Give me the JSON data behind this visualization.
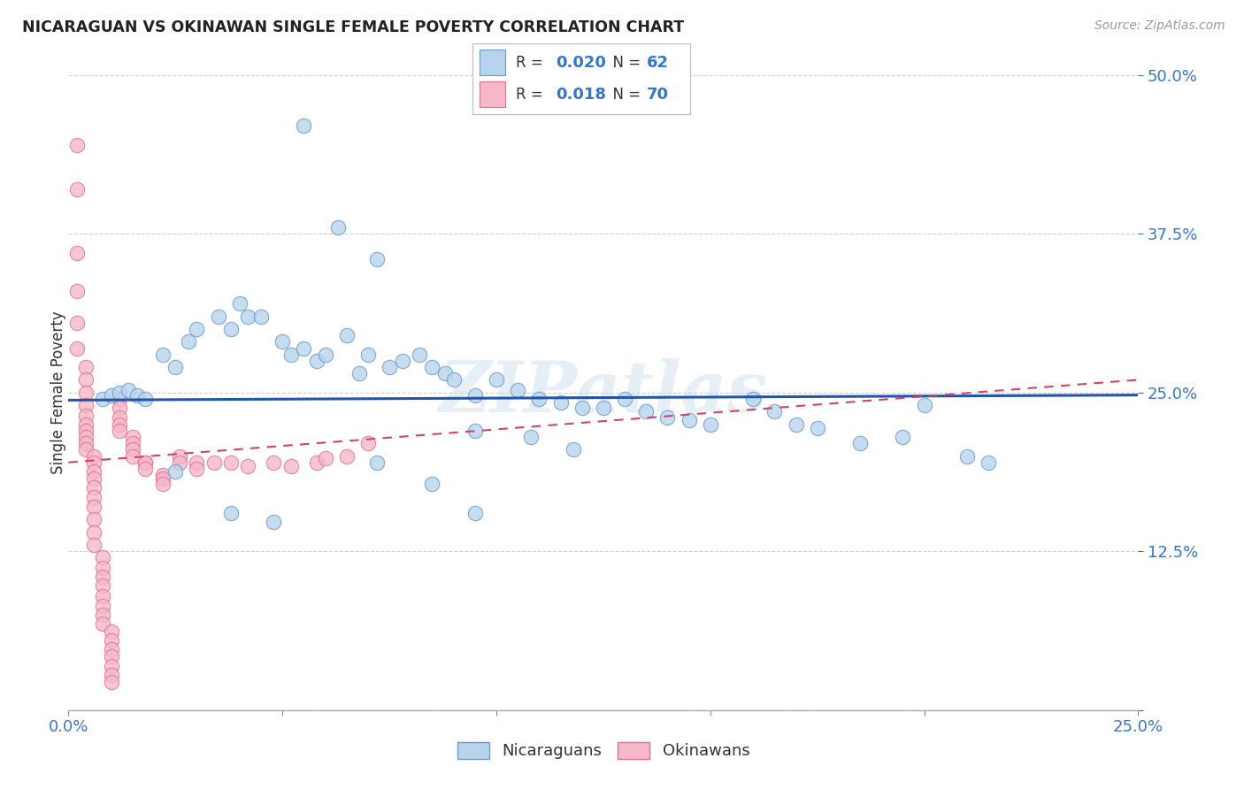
{
  "title": "NICARAGUAN VS OKINAWAN SINGLE FEMALE POVERTY CORRELATION CHART",
  "source": "Source: ZipAtlas.com",
  "ylabel": "Single Female Poverty",
  "xlim": [
    0.0,
    0.25
  ],
  "ylim": [
    0.0,
    0.5
  ],
  "yticks": [
    0.0,
    0.125,
    0.25,
    0.375,
    0.5
  ],
  "ytick_labels": [
    "",
    "12.5%",
    "25.0%",
    "37.5%",
    "50.0%"
  ],
  "xticks": [
    0.0,
    0.05,
    0.1,
    0.15,
    0.2,
    0.25
  ],
  "xtick_labels": [
    "0.0%",
    "",
    "",
    "",
    "",
    "25.0%"
  ],
  "watermark": "ZIPatlas",
  "color_nicaraguan_fill": "#b8d4ec",
  "color_nicaraguan_edge": "#6699cc",
  "color_okinawan_fill": "#f5b8c8",
  "color_okinawan_edge": "#e07090",
  "color_line_nicaraguan": "#2255aa",
  "color_line_okinawan": "#cc4466",
  "background_color": "#ffffff",
  "grid_color": "#cccccc",
  "title_color": "#222222",
  "axis_tick_color": "#3377cc",
  "legend_box_color": "#dddddd",
  "nicaraguan_x": [
    0.008,
    0.01,
    0.012,
    0.014,
    0.016,
    0.018,
    0.022,
    0.025,
    0.028,
    0.03,
    0.035,
    0.038,
    0.04,
    0.042,
    0.045,
    0.05,
    0.052,
    0.055,
    0.058,
    0.06,
    0.065,
    0.068,
    0.07,
    0.075,
    0.078,
    0.082,
    0.085,
    0.088,
    0.09,
    0.095,
    0.1,
    0.105,
    0.11,
    0.115,
    0.12,
    0.125,
    0.13,
    0.135,
    0.14,
    0.145,
    0.15,
    0.16,
    0.165,
    0.17,
    0.175,
    0.185,
    0.195,
    0.2,
    0.21,
    0.215,
    0.055,
    0.063,
    0.072,
    0.095,
    0.108,
    0.118,
    0.038,
    0.048,
    0.025,
    0.072,
    0.085,
    0.095
  ],
  "nicaraguan_y": [
    0.245,
    0.248,
    0.25,
    0.252,
    0.248,
    0.245,
    0.28,
    0.27,
    0.29,
    0.3,
    0.31,
    0.3,
    0.32,
    0.31,
    0.31,
    0.29,
    0.28,
    0.285,
    0.275,
    0.28,
    0.295,
    0.265,
    0.28,
    0.27,
    0.275,
    0.28,
    0.27,
    0.265,
    0.26,
    0.248,
    0.26,
    0.252,
    0.245,
    0.242,
    0.238,
    0.238,
    0.245,
    0.235,
    0.23,
    0.228,
    0.225,
    0.245,
    0.235,
    0.225,
    0.222,
    0.21,
    0.215,
    0.24,
    0.2,
    0.195,
    0.46,
    0.38,
    0.355,
    0.22,
    0.215,
    0.205,
    0.155,
    0.148,
    0.188,
    0.195,
    0.178,
    0.155
  ],
  "okinawan_x": [
    0.002,
    0.002,
    0.002,
    0.002,
    0.002,
    0.002,
    0.004,
    0.004,
    0.004,
    0.004,
    0.004,
    0.004,
    0.004,
    0.004,
    0.004,
    0.004,
    0.006,
    0.006,
    0.006,
    0.006,
    0.006,
    0.006,
    0.006,
    0.006,
    0.006,
    0.006,
    0.008,
    0.008,
    0.008,
    0.008,
    0.008,
    0.008,
    0.008,
    0.008,
    0.01,
    0.01,
    0.01,
    0.01,
    0.01,
    0.01,
    0.01,
    0.012,
    0.012,
    0.012,
    0.012,
    0.012,
    0.015,
    0.015,
    0.015,
    0.015,
    0.018,
    0.018,
    0.018,
    0.022,
    0.022,
    0.022,
    0.026,
    0.026,
    0.03,
    0.03,
    0.034,
    0.038,
    0.042,
    0.048,
    0.052,
    0.058,
    0.06,
    0.065,
    0.07
  ],
  "okinawan_y": [
    0.445,
    0.41,
    0.36,
    0.33,
    0.305,
    0.285,
    0.27,
    0.26,
    0.25,
    0.24,
    0.232,
    0.225,
    0.22,
    0.215,
    0.21,
    0.205,
    0.2,
    0.195,
    0.188,
    0.182,
    0.175,
    0.168,
    0.16,
    0.15,
    0.14,
    0.13,
    0.12,
    0.112,
    0.105,
    0.098,
    0.09,
    0.082,
    0.075,
    0.068,
    0.062,
    0.055,
    0.048,
    0.042,
    0.035,
    0.028,
    0.022,
    0.245,
    0.238,
    0.23,
    0.225,
    0.22,
    0.215,
    0.21,
    0.205,
    0.2,
    0.195,
    0.195,
    0.19,
    0.185,
    0.182,
    0.178,
    0.2,
    0.195,
    0.195,
    0.19,
    0.195,
    0.195,
    0.192,
    0.195,
    0.192,
    0.195,
    0.198,
    0.2,
    0.21
  ],
  "nic_line_x": [
    0.0,
    0.25
  ],
  "nic_line_y": [
    0.244,
    0.248
  ],
  "oki_line_x": [
    0.0,
    0.25
  ],
  "oki_line_y": [
    0.195,
    0.26
  ]
}
